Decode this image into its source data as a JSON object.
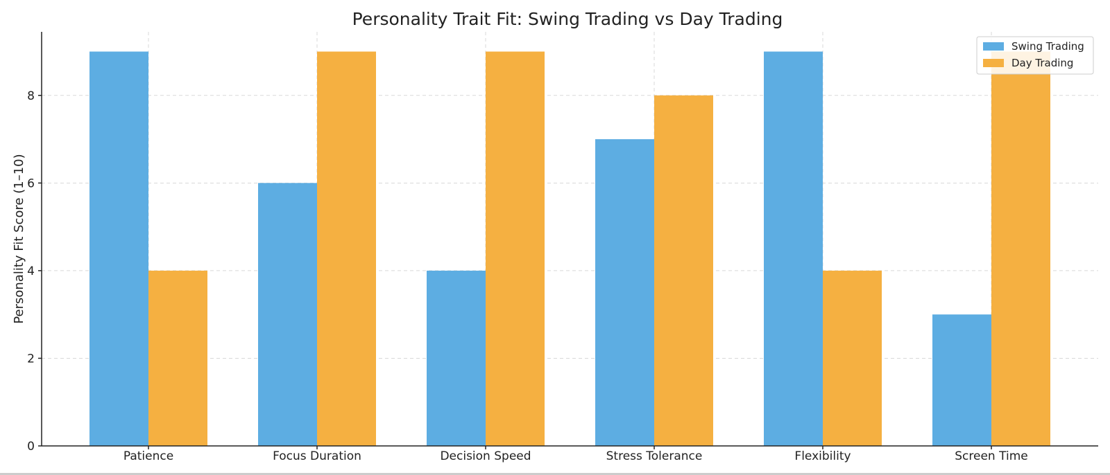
{
  "chart_data": {
    "type": "bar",
    "title": "Personality Trait Fit: Swing Trading vs Day Trading",
    "xlabel": "",
    "ylabel": "Personality Fit Score (1–10)",
    "categories": [
      "Patience",
      "Focus Duration",
      "Decision Speed",
      "Stress Tolerance",
      "Flexibility",
      "Screen Time"
    ],
    "series": [
      {
        "name": "Swing Trading",
        "color": "#5DADE2",
        "values": [
          9,
          6,
          4,
          7,
          9,
          3
        ]
      },
      {
        "name": "Day Trading",
        "color": "#F5B041",
        "values": [
          4,
          9,
          9,
          8,
          4,
          9
        ]
      }
    ],
    "ylim": [
      0,
      9.45
    ],
    "yticks": [
      0,
      2,
      4,
      6,
      8
    ],
    "grid": true,
    "legend_position": "top-right"
  }
}
